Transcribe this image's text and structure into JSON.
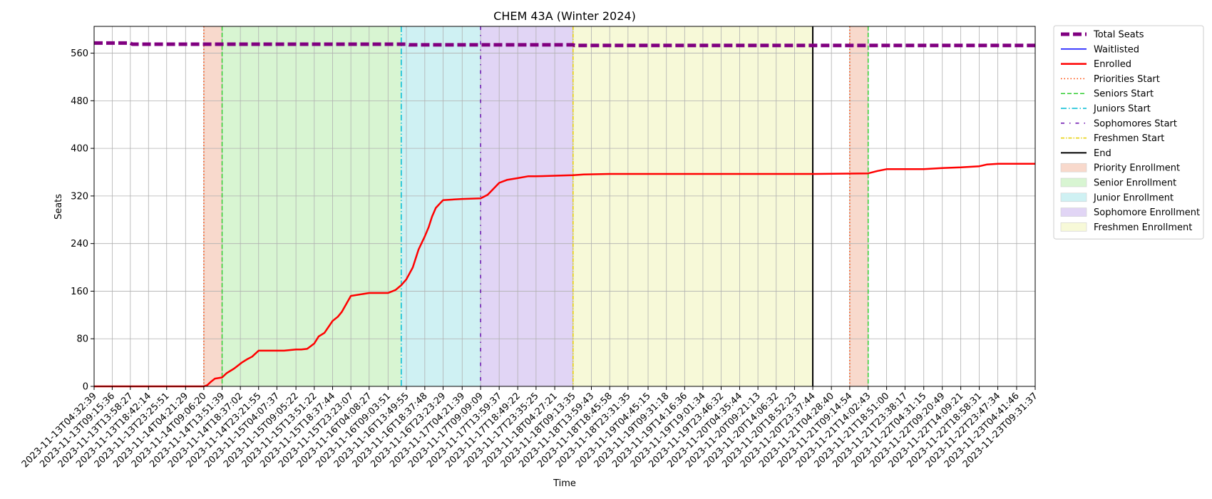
{
  "chart_data": {
    "type": "line",
    "title": "CHEM 43A (Winter 2024)",
    "xlabel": "Time",
    "ylabel": "Seats",
    "ylim": [
      0,
      605
    ],
    "yticks": [
      0,
      80,
      160,
      240,
      320,
      400,
      480,
      560
    ],
    "grid": true,
    "legend_position": "outside-right",
    "colors": {
      "total": "#800080",
      "waitlisted": "#0000ff",
      "enrolled": "#ff0000",
      "priority_line": "#ff4500",
      "senior_line": "#32cd32",
      "junior_line": "#00bcd4",
      "sophomore_line": "#6a0dad",
      "freshmen_line": "#e6cf00",
      "end_line": "#000000",
      "priority_fill": "#f8d9cc",
      "senior_fill": "#d8f5d2",
      "junior_fill": "#cff1f3",
      "sophomore_fill": "#e1d5f5",
      "freshmen_fill": "#f7f9d8"
    },
    "xticks": [
      "2023-11-13T04:32:39",
      "2023-11-13T09:15:36",
      "2023-11-13T13:58:27",
      "2023-11-13T18:42:14",
      "2023-11-13T23:25:51",
      "2023-11-14T04:21:29",
      "2023-11-14T09:06:20",
      "2023-11-14T13:51:39",
      "2023-11-14T18:37:02",
      "2023-11-14T23:21:55",
      "2023-11-15T04:07:37",
      "2023-11-15T09:05:22",
      "2023-11-15T13:51:22",
      "2023-11-15T18:37:44",
      "2023-11-15T23:23:07",
      "2023-11-16T04:08:27",
      "2023-11-16T09:03:51",
      "2023-11-16T13:49:55",
      "2023-11-16T18:37:48",
      "2023-11-16T23:23:29",
      "2023-11-17T04:21:39",
      "2023-11-17T09:09:09",
      "2023-11-17T13:59:37",
      "2023-11-17T18:49:22",
      "2023-11-17T23:35:25",
      "2023-11-18T04:27:21",
      "2023-11-18T09:13:35",
      "2023-11-18T13:59:43",
      "2023-11-18T18:45:58",
      "2023-11-18T23:31:35",
      "2023-11-19T04:45:15",
      "2023-11-19T09:31:18",
      "2023-11-19T14:16:36",
      "2023-11-19T19:01:34",
      "2023-11-19T23:46:32",
      "2023-11-20T04:35:44",
      "2023-11-20T09:21:13",
      "2023-11-20T14:06:32",
      "2023-11-20T18:52:23",
      "2023-11-20T23:37:44",
      "2023-11-21T04:28:40",
      "2023-11-21T09:14:54",
      "2023-11-21T14:02:43",
      "2023-11-21T18:51:00",
      "2023-11-21T23:38:17",
      "2023-11-22T04:31:15",
      "2023-11-22T09:20:49",
      "2023-11-22T14:09:21",
      "2023-11-22T18:58:31",
      "2023-11-22T23:47:34",
      "2023-11-23T04:41:46",
      "2023-11-23T09:31:37"
    ],
    "series": [
      {
        "name": "Total Seats",
        "x": [
          "2023-11-13T04:32:39",
          "2023-11-13T13:58:27",
          "2023-11-13T14:30:00",
          "2023-11-16T13:49:55",
          "2023-11-16T14:30:00",
          "2023-11-18T09:13:35",
          "2023-11-18T09:40:00",
          "2023-11-23T09:31:37"
        ],
        "y": [
          577,
          577,
          575,
          575,
          574,
          574,
          573,
          573
        ]
      },
      {
        "name": "Waitlisted",
        "x": [],
        "y": []
      },
      {
        "name": "Enrolled",
        "x": [
          "2023-11-13T04:32:39",
          "2023-11-14T09:06:20",
          "2023-11-14T10:00:00",
          "2023-11-14T11:00:00",
          "2023-11-14T12:00:00",
          "2023-11-14T13:51:39",
          "2023-11-14T15:00:00",
          "2023-11-14T17:00:00",
          "2023-11-14T19:00:00",
          "2023-11-14T20:30:00",
          "2023-11-14T21:40:00",
          "2023-11-14T23:21:55",
          "2023-11-15T04:07:37",
          "2023-11-15T06:00:00",
          "2023-11-15T09:05:22",
          "2023-11-15T10:30:00",
          "2023-11-15T12:00:00",
          "2023-11-15T13:51:22",
          "2023-11-15T15:00:00",
          "2023-11-15T16:30:00",
          "2023-11-15T18:37:44",
          "2023-11-15T20:00:00",
          "2023-11-15T21:00:00",
          "2023-11-15T23:23:07",
          "2023-11-16T04:08:27",
          "2023-11-16T09:03:51",
          "2023-11-16T11:00:00",
          "2023-11-16T12:30:00",
          "2023-11-16T13:49:55",
          "2023-11-16T15:30:00",
          "2023-11-16T17:00:00",
          "2023-11-16T18:37:48",
          "2023-11-16T19:40:00",
          "2023-11-16T20:30:00",
          "2023-11-16T21:30:00",
          "2023-11-16T23:23:29",
          "2023-11-17T04:21:39",
          "2023-11-17T09:09:09",
          "2023-11-17T11:00:00",
          "2023-11-17T12:30:00",
          "2023-11-17T13:59:37",
          "2023-11-17T16:00:00",
          "2023-11-17T18:49:22",
          "2023-11-17T21:30:00",
          "2023-11-17T23:35:25",
          "2023-11-18T04:27:21",
          "2023-11-18T09:13:35",
          "2023-11-18T12:00:00",
          "2023-11-18T18:45:58",
          "2023-11-20T23:37:44",
          "2023-11-21T14:02:43",
          "2023-11-21T16:30:00",
          "2023-11-21T18:51:00",
          "2023-11-22T04:31:15",
          "2023-11-22T09:20:49",
          "2023-11-22T14:09:21",
          "2023-11-22T18:58:31",
          "2023-11-22T21:00:00",
          "2023-11-22T23:47:34",
          "2023-11-23T09:31:37"
        ],
        "y": [
          0,
          0,
          2,
          8,
          13,
          15,
          22,
          30,
          40,
          46,
          50,
          60,
          60,
          60,
          62,
          62,
          63,
          72,
          84,
          90,
          110,
          117,
          125,
          152,
          157,
          157,
          162,
          170,
          180,
          200,
          230,
          252,
          268,
          285,
          300,
          313,
          315,
          316,
          322,
          332,
          342,
          347,
          350,
          353,
          353,
          354,
          355,
          356,
          357,
          357,
          358,
          362,
          365,
          365,
          367,
          368,
          370,
          373,
          374,
          374
        ]
      }
    ],
    "vlines": [
      {
        "name": "Priorities Start",
        "x": "2023-11-14T09:06:20"
      },
      {
        "name": "Seniors Start",
        "x": "2023-11-14T13:51:39"
      },
      {
        "name": "Juniors Start",
        "x": "2023-11-16T12:30:00"
      },
      {
        "name": "Sophomores Start",
        "x": "2023-11-17T09:09:09"
      },
      {
        "name": "Freshmen Start",
        "x": "2023-11-18T09:13:35"
      },
      {
        "name": "End",
        "x": "2023-11-20T23:37:44"
      },
      {
        "name": "Priorities Start",
        "x": "2023-11-21T09:14:54"
      },
      {
        "name": "Seniors Start",
        "x": "2023-11-21T14:02:43"
      }
    ],
    "bands": [
      {
        "name": "Priority Enrollment",
        "x0": "2023-11-14T09:06:20",
        "x1": "2023-11-14T13:51:39"
      },
      {
        "name": "Senior Enrollment",
        "x0": "2023-11-14T13:51:39",
        "x1": "2023-11-16T12:30:00"
      },
      {
        "name": "Junior Enrollment",
        "x0": "2023-11-16T12:30:00",
        "x1": "2023-11-17T09:09:09"
      },
      {
        "name": "Sophomore Enrollment",
        "x0": "2023-11-17T09:09:09",
        "x1": "2023-11-18T09:13:35"
      },
      {
        "name": "Freshmen Enrollment",
        "x0": "2023-11-18T09:13:35",
        "x1": "2023-11-20T23:37:44"
      },
      {
        "name": "Priority Enrollment",
        "x0": "2023-11-21T09:14:54",
        "x1": "2023-11-21T14:02:43"
      }
    ],
    "legend": [
      {
        "label": "Total Seats",
        "kind": "line",
        "key": "total",
        "dash": "12,5",
        "width": 5
      },
      {
        "label": "Waitlisted",
        "kind": "line",
        "key": "waitlisted",
        "dash": "",
        "width": 1.5
      },
      {
        "label": "Enrolled",
        "kind": "line",
        "key": "enrolled",
        "dash": "",
        "width": 2.5
      },
      {
        "label": "Priorities Start",
        "kind": "line",
        "key": "priority_line",
        "dash": "1.5,3",
        "width": 1.5
      },
      {
        "label": "Seniors Start",
        "kind": "line",
        "key": "senior_line",
        "dash": "6,3",
        "width": 1.5
      },
      {
        "label": "Juniors Start",
        "kind": "line",
        "key": "junior_line",
        "dash": "8,3,1.5,3",
        "width": 1.5
      },
      {
        "label": "Sophomores Start",
        "kind": "line",
        "key": "sophomore_line",
        "dash": "5,7,1.5,7",
        "width": 1.5
      },
      {
        "label": "Freshmen Start",
        "kind": "line",
        "key": "freshmen_line",
        "dash": "5,2,1.5,2",
        "width": 1.5
      },
      {
        "label": "End",
        "kind": "line",
        "key": "end_line",
        "dash": "",
        "width": 2
      },
      {
        "label": "Priority Enrollment",
        "kind": "patch",
        "key": "priority_fill"
      },
      {
        "label": "Senior Enrollment",
        "kind": "patch",
        "key": "senior_fill"
      },
      {
        "label": "Junior Enrollment",
        "kind": "patch",
        "key": "junior_fill"
      },
      {
        "label": "Sophomore Enrollment",
        "kind": "patch",
        "key": "sophomore_fill"
      },
      {
        "label": "Freshmen Enrollment",
        "kind": "patch",
        "key": "freshmen_fill"
      }
    ]
  }
}
